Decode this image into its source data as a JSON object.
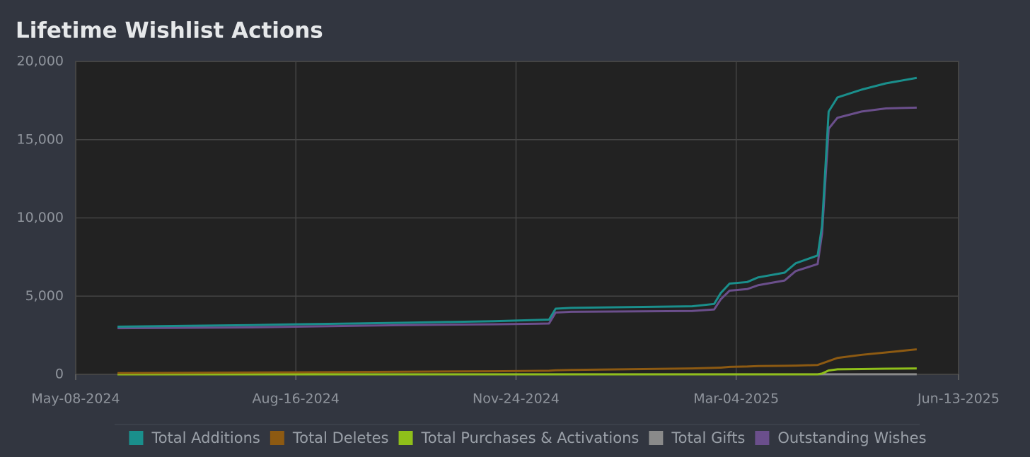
{
  "chart_data": {
    "type": "line",
    "title": "Lifetime Wishlist Actions",
    "x": [
      "2024-05-27",
      "2024-07-27",
      "2024-08-16",
      "2024-10-05",
      "2024-11-14",
      "2024-12-09",
      "2024-12-12",
      "2024-12-19",
      "2025-02-12",
      "2025-02-22",
      "2025-02-25",
      "2025-03-01",
      "2025-03-09",
      "2025-03-14",
      "2025-03-26",
      "2025-03-31",
      "2025-04-10",
      "2025-04-12",
      "2025-04-15",
      "2025-04-19",
      "2025-04-30",
      "2025-05-11",
      "2025-05-25"
    ],
    "series": [
      {
        "name": "Total Additions",
        "color": "#1a8f8c",
        "values": [
          3050,
          3150,
          3200,
          3300,
          3400,
          3500,
          4200,
          4250,
          4350,
          4500,
          5200,
          5800,
          5900,
          6200,
          6500,
          7100,
          7600,
          9500,
          16800,
          17700,
          18200,
          18600,
          18950
        ]
      },
      {
        "name": "Total Deletes",
        "color": "#8d5a12",
        "values": [
          80,
          120,
          130,
          170,
          200,
          230,
          260,
          280,
          380,
          420,
          430,
          480,
          500,
          530,
          550,
          560,
          600,
          700,
          850,
          1050,
          1250,
          1400,
          1600
        ]
      },
      {
        "name": "Total Purchases & Activations",
        "color": "#8fbf1a",
        "values": [
          0,
          0,
          0,
          0,
          0,
          0,
          0,
          0,
          0,
          0,
          0,
          0,
          0,
          0,
          0,
          0,
          0,
          50,
          250,
          320,
          340,
          360,
          380
        ]
      },
      {
        "name": "Total Gifts",
        "color": "#8a8a8a",
        "values": [
          5,
          5,
          5,
          5,
          5,
          5,
          5,
          5,
          5,
          5,
          5,
          5,
          5,
          5,
          5,
          5,
          5,
          5,
          5,
          5,
          5,
          5,
          5
        ]
      },
      {
        "name": "Outstanding Wishes",
        "color": "#6b4f8c",
        "values": [
          2950,
          3000,
          3050,
          3150,
          3200,
          3250,
          3950,
          4000,
          4050,
          4150,
          4800,
          5350,
          5450,
          5700,
          6000,
          6600,
          7050,
          9000,
          15700,
          16400,
          16800,
          17000,
          17050
        ]
      }
    ],
    "xlim": [
      "2024-05-08",
      "2025-06-13"
    ],
    "xticks": [
      {
        "value": "2024-05-08",
        "label": "May-08-2024"
      },
      {
        "value": "2024-08-16",
        "label": "Aug-16-2024"
      },
      {
        "value": "2024-11-24",
        "label": "Nov-24-2024"
      },
      {
        "value": "2025-03-04",
        "label": "Mar-04-2025"
      },
      {
        "value": "2025-06-13",
        "label": "Jun-13-2025"
      }
    ],
    "ylim": [
      0,
      20000
    ],
    "yticks": [
      0,
      {
        "value": 5000,
        "label": "5,000"
      },
      {
        "value": 10000,
        "label": "10,000"
      },
      {
        "value": 15000,
        "label": "15,000"
      },
      {
        "value": 20000,
        "label": "20,000"
      }
    ],
    "grid": true
  }
}
